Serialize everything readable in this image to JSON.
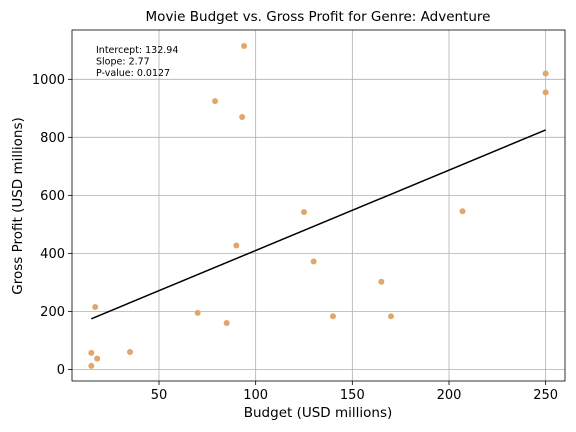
{
  "chart_data": {
    "type": "scatter",
    "title": "Movie Budget vs. Gross Profit for Genre: Adventure",
    "xlabel": "Budget (USD millions)",
    "ylabel": "Gross Profit (USD millions)",
    "xlim": [
      5,
      260
    ],
    "ylim": [
      -40,
      1170
    ],
    "xticks": [
      50,
      100,
      150,
      200,
      250
    ],
    "yticks": [
      0,
      200,
      400,
      600,
      800,
      1000
    ],
    "grid": true,
    "point_color": "#e0a76a",
    "line_color": "#000000",
    "points": [
      {
        "x": 94,
        "y": 1115
      },
      {
        "x": 79,
        "y": 925
      },
      {
        "x": 93,
        "y": 870
      },
      {
        "x": 250,
        "y": 1020
      },
      {
        "x": 250,
        "y": 955
      },
      {
        "x": 125,
        "y": 542
      },
      {
        "x": 207,
        "y": 545
      },
      {
        "x": 90,
        "y": 427
      },
      {
        "x": 130,
        "y": 372
      },
      {
        "x": 165,
        "y": 302
      },
      {
        "x": 17,
        "y": 215
      },
      {
        "x": 70,
        "y": 195
      },
      {
        "x": 85,
        "y": 160
      },
      {
        "x": 140,
        "y": 183
      },
      {
        "x": 170,
        "y": 183
      },
      {
        "x": 35,
        "y": 60
      },
      {
        "x": 15,
        "y": 57
      },
      {
        "x": 18,
        "y": 37
      },
      {
        "x": 15,
        "y": 12
      }
    ],
    "regression": {
      "x_start": 15,
      "x_end": 250
    },
    "annotations": [
      "Intercept: 132.94",
      "Slope: 2.77",
      "P-value: 0.0127"
    ],
    "intercept": 132.94,
    "slope": 2.77
  }
}
